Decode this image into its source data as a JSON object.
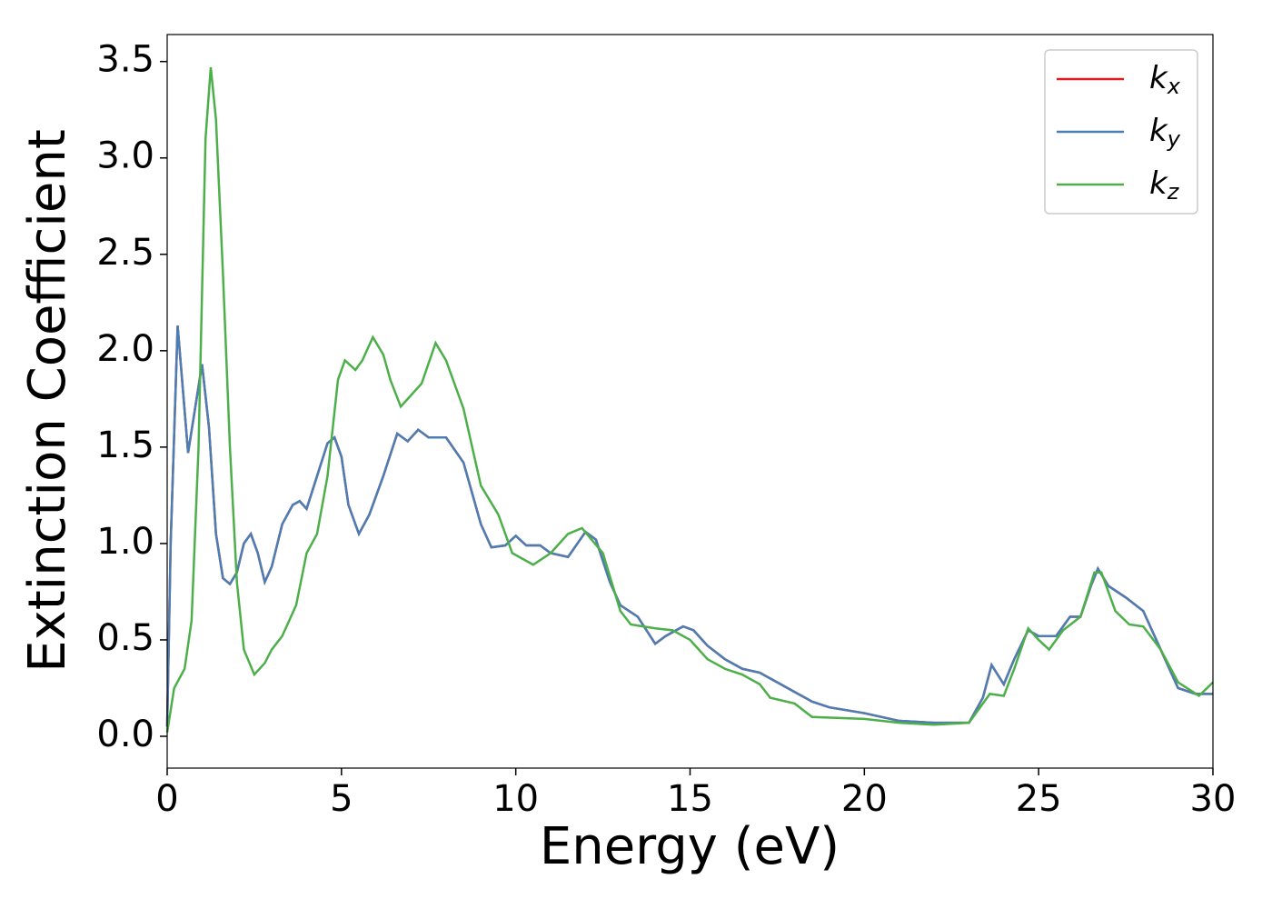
{
  "chart_data": {
    "type": "line",
    "xlabel": "Energy (eV)",
    "ylabel": "Extinction Coefficient",
    "xlim": [
      0,
      30
    ],
    "xticks": [
      0,
      5,
      10,
      15,
      20,
      25,
      30
    ],
    "ylim": [
      -0.165,
      3.64
    ],
    "yticks": [
      {
        "value": 0,
        "label": "0.0"
      },
      {
        "value": 0.5,
        "label": "0.5"
      },
      {
        "value": 1,
        "label": "1.0"
      },
      {
        "value": 1.5,
        "label": "1.5"
      },
      {
        "value": 2,
        "label": "2.0"
      },
      {
        "value": 2.5,
        "label": "2.5"
      },
      {
        "value": 3,
        "label": "3.0"
      },
      {
        "value": 3.5,
        "label": "3.5"
      }
    ],
    "legend": "upper right",
    "grid": false,
    "series": [
      {
        "name": "kx",
        "color": "#e41a1c",
        "x": [
          0,
          0.1,
          0.3,
          0.45,
          0.6,
          0.8,
          1.0,
          1.2,
          1.4,
          1.6,
          1.8,
          2.0,
          2.2,
          2.4,
          2.6,
          2.8,
          3.0,
          3.3,
          3.6,
          3.8,
          4.0,
          4.3,
          4.6,
          4.8,
          5.0,
          5.2,
          5.5,
          5.8,
          6.2,
          6.6,
          6.9,
          7.2,
          7.5,
          8.0,
          8.5,
          9.0,
          9.3,
          9.7,
          10.0,
          10.3,
          10.7,
          11.0,
          11.5,
          12.0,
          12.3,
          12.7,
          13.0,
          13.5,
          14.0,
          14.3,
          14.8,
          15.1,
          15.5,
          16.0,
          16.5,
          17.0,
          17.5,
          18.0,
          18.5,
          19.0,
          20.0,
          21.0,
          22.0,
          23.0,
          23.4,
          23.65,
          24.0,
          24.3,
          24.7,
          25.0,
          25.5,
          25.9,
          26.2,
          26.5,
          26.7,
          27.0,
          27.5,
          28.0,
          28.5,
          29.0,
          29.5,
          30.0
        ],
        "values": [
          0.05,
          1.0,
          2.13,
          1.8,
          1.47,
          1.7,
          1.93,
          1.6,
          1.05,
          0.82,
          0.79,
          0.85,
          1.0,
          1.05,
          0.95,
          0.8,
          0.88,
          1.1,
          1.2,
          1.22,
          1.18,
          1.35,
          1.52,
          1.55,
          1.45,
          1.2,
          1.05,
          1.15,
          1.35,
          1.57,
          1.53,
          1.59,
          1.55,
          1.55,
          1.42,
          1.1,
          0.98,
          0.99,
          1.04,
          0.99,
          0.99,
          0.95,
          0.93,
          1.06,
          1.02,
          0.8,
          0.68,
          0.62,
          0.48,
          0.52,
          0.57,
          0.55,
          0.47,
          0.4,
          0.35,
          0.33,
          0.28,
          0.23,
          0.18,
          0.15,
          0.12,
          0.08,
          0.07,
          0.07,
          0.2,
          0.37,
          0.27,
          0.4,
          0.55,
          0.52,
          0.52,
          0.62,
          0.62,
          0.78,
          0.87,
          0.78,
          0.72,
          0.65,
          0.45,
          0.25,
          0.22,
          0.22
        ]
      },
      {
        "name": "ky",
        "color": "#4a7eb4",
        "x": [
          0,
          0.1,
          0.3,
          0.45,
          0.6,
          0.8,
          1.0,
          1.2,
          1.4,
          1.6,
          1.8,
          2.0,
          2.2,
          2.4,
          2.6,
          2.8,
          3.0,
          3.3,
          3.6,
          3.8,
          4.0,
          4.3,
          4.6,
          4.8,
          5.0,
          5.2,
          5.5,
          5.8,
          6.2,
          6.6,
          6.9,
          7.2,
          7.5,
          8.0,
          8.5,
          9.0,
          9.3,
          9.7,
          10.0,
          10.3,
          10.7,
          11.0,
          11.5,
          12.0,
          12.3,
          12.7,
          13.0,
          13.5,
          14.0,
          14.3,
          14.8,
          15.1,
          15.5,
          16.0,
          16.5,
          17.0,
          17.5,
          18.0,
          18.5,
          19.0,
          20.0,
          21.0,
          22.0,
          23.0,
          23.4,
          23.65,
          24.0,
          24.3,
          24.7,
          25.0,
          25.5,
          25.9,
          26.2,
          26.5,
          26.7,
          27.0,
          27.5,
          28.0,
          28.5,
          29.0,
          29.5,
          30.0
        ],
        "values": [
          0.05,
          1.0,
          2.13,
          1.8,
          1.47,
          1.7,
          1.93,
          1.6,
          1.05,
          0.82,
          0.79,
          0.85,
          1.0,
          1.05,
          0.95,
          0.8,
          0.88,
          1.1,
          1.2,
          1.22,
          1.18,
          1.35,
          1.52,
          1.55,
          1.45,
          1.2,
          1.05,
          1.15,
          1.35,
          1.57,
          1.53,
          1.59,
          1.55,
          1.55,
          1.42,
          1.1,
          0.98,
          0.99,
          1.04,
          0.99,
          0.99,
          0.95,
          0.93,
          1.06,
          1.02,
          0.8,
          0.68,
          0.62,
          0.48,
          0.52,
          0.57,
          0.55,
          0.47,
          0.4,
          0.35,
          0.33,
          0.28,
          0.23,
          0.18,
          0.15,
          0.12,
          0.08,
          0.07,
          0.07,
          0.2,
          0.37,
          0.27,
          0.4,
          0.55,
          0.52,
          0.52,
          0.62,
          0.62,
          0.78,
          0.87,
          0.78,
          0.72,
          0.65,
          0.45,
          0.25,
          0.22,
          0.22
        ]
      },
      {
        "name": "kz",
        "color": "#4daf4a",
        "x": [
          0,
          0.2,
          0.5,
          0.7,
          0.9,
          1.1,
          1.25,
          1.4,
          1.6,
          1.8,
          2.0,
          2.2,
          2.5,
          2.8,
          3.0,
          3.3,
          3.7,
          4.0,
          4.3,
          4.6,
          4.9,
          5.1,
          5.4,
          5.6,
          5.9,
          6.2,
          6.4,
          6.7,
          7.0,
          7.3,
          7.7,
          8.0,
          8.5,
          9.0,
          9.5,
          9.9,
          10.5,
          11.0,
          11.5,
          11.9,
          12.5,
          13.0,
          13.3,
          14.0,
          14.5,
          15.0,
          15.5,
          16.0,
          16.5,
          17.0,
          17.3,
          18.0,
          18.5,
          20.0,
          21.0,
          22.0,
          23.0,
          23.6,
          24.0,
          24.3,
          24.7,
          25.0,
          25.3,
          25.7,
          26.2,
          26.6,
          26.8,
          27.2,
          27.6,
          28.0,
          28.5,
          29.0,
          29.6,
          30.0
        ],
        "values": [
          0.02,
          0.25,
          0.35,
          0.6,
          1.5,
          3.1,
          3.47,
          3.2,
          2.4,
          1.5,
          0.8,
          0.45,
          0.32,
          0.38,
          0.45,
          0.52,
          0.68,
          0.95,
          1.05,
          1.35,
          1.85,
          1.95,
          1.9,
          1.95,
          2.07,
          1.98,
          1.85,
          1.71,
          1.77,
          1.83,
          2.04,
          1.95,
          1.7,
          1.3,
          1.15,
          0.95,
          0.89,
          0.95,
          1.05,
          1.08,
          0.95,
          0.65,
          0.58,
          0.56,
          0.55,
          0.5,
          0.4,
          0.35,
          0.32,
          0.27,
          0.2,
          0.17,
          0.1,
          0.09,
          0.07,
          0.06,
          0.07,
          0.22,
          0.21,
          0.35,
          0.56,
          0.5,
          0.45,
          0.55,
          0.62,
          0.85,
          0.85,
          0.65,
          0.58,
          0.57,
          0.45,
          0.28,
          0.21,
          0.28
        ]
      }
    ]
  }
}
